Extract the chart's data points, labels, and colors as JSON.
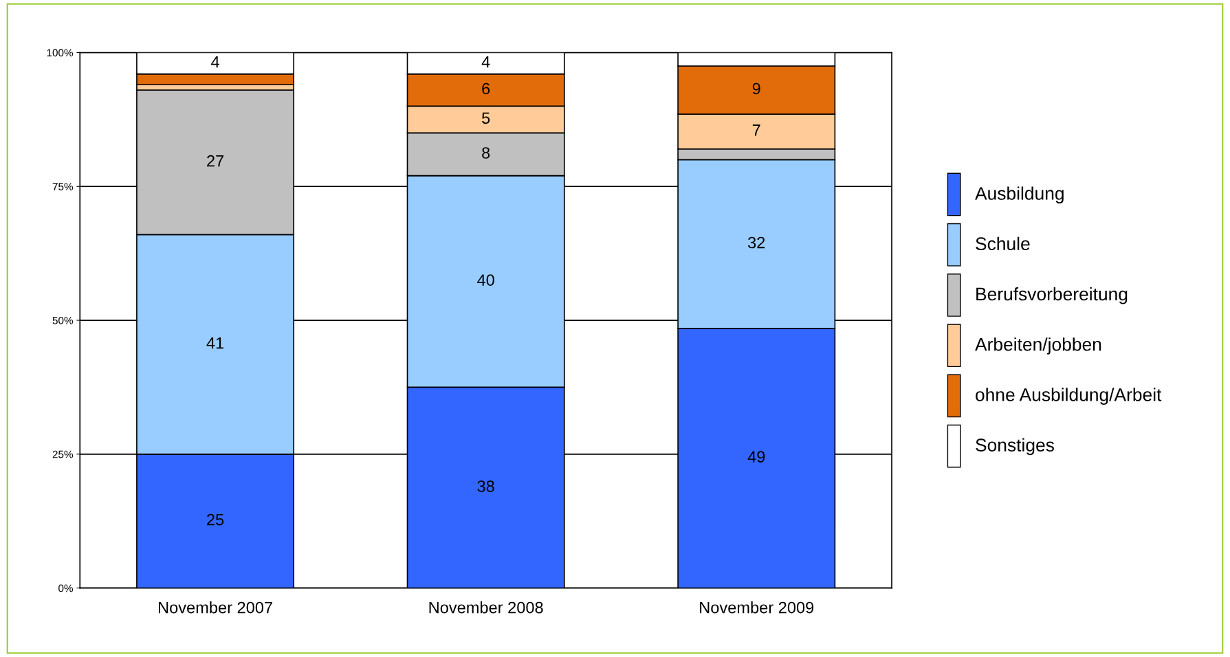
{
  "chart_data": {
    "type": "bar",
    "stacked": true,
    "categories": [
      "November 2007",
      "November 2008",
      "November 2009"
    ],
    "series": [
      {
        "name": "Ausbildung",
        "color": "#3366ff",
        "values": [
          25,
          37.5,
          48.5
        ],
        "value_labels": [
          "25",
          "38",
          "49"
        ]
      },
      {
        "name": "Schule",
        "color": "#99ccff",
        "values": [
          41,
          39.5,
          31.5
        ],
        "value_labels": [
          "41",
          "40",
          "32"
        ]
      },
      {
        "name": "Berufsvorbereitung",
        "color": "#c0c0c0",
        "values": [
          27,
          8,
          2
        ],
        "value_labels": [
          "27",
          "8",
          null
        ]
      },
      {
        "name": "Arbeiten/jobben",
        "color": "#ffcc99",
        "values": [
          1,
          5,
          6.5
        ],
        "value_labels": [
          null,
          "5",
          "7"
        ]
      },
      {
        "name": "ohne Ausbildung/Arbeit",
        "color": "#e36c0a",
        "values": [
          2,
          6,
          9
        ],
        "value_labels": [
          null,
          "6",
          "9"
        ]
      },
      {
        "name": "Sonstiges",
        "color": "#ffffff",
        "values": [
          4,
          4,
          2.5
        ],
        "value_labels": [
          "4",
          "4",
          null
        ]
      }
    ],
    "ylim": [
      0,
      100
    ],
    "yticks": [
      {
        "value": 0,
        "label": "0%"
      },
      {
        "value": 25,
        "label": "25%"
      },
      {
        "value": 50,
        "label": "50%"
      },
      {
        "value": 75,
        "label": "75%"
      },
      {
        "value": 100,
        "label": "100%"
      }
    ],
    "grid": "y",
    "legend": "right"
  }
}
